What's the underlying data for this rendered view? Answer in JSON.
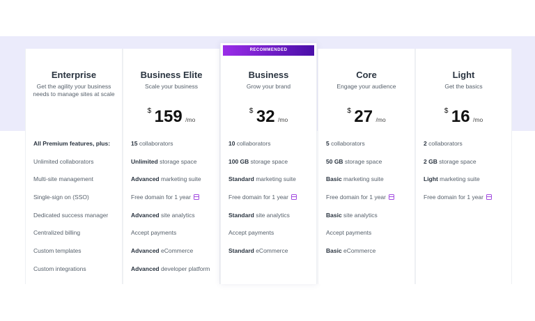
{
  "recommended_label": "RECOMMENDED",
  "plans": [
    {
      "name": "Enterprise",
      "subtitle": "Get the agility your business needs to manage sites at scale",
      "features": [
        {
          "bold": "All Premium features, plus:",
          "text": ""
        },
        {
          "bold": "",
          "text": "Unlimited collaborators"
        },
        {
          "bold": "",
          "text": "Multi-site management"
        },
        {
          "bold": "",
          "text": "Single-sign on (SSO)"
        },
        {
          "bold": "",
          "text": "Dedicated success manager"
        },
        {
          "bold": "",
          "text": "Centralized billing"
        },
        {
          "bold": "",
          "text": "Custom templates"
        },
        {
          "bold": "",
          "text": "Custom integrations"
        }
      ]
    },
    {
      "name": "Business Elite",
      "subtitle": "Scale your business",
      "currency": "$",
      "price": "159",
      "period": "/mo",
      "features": [
        {
          "bold": "15",
          "text": " collaborators"
        },
        {
          "bold": "Unlimited",
          "text": " storage space"
        },
        {
          "bold": "Advanced",
          "text": " marketing suite"
        },
        {
          "bold": "",
          "text": "Free domain for 1 year",
          "gift": true
        },
        {
          "bold": "Advanced",
          "text": " site analytics"
        },
        {
          "bold": "",
          "text": "Accept payments"
        },
        {
          "bold": "Advanced",
          "text": " eCommerce"
        },
        {
          "bold": "Advanced",
          "text": " developer platform"
        }
      ]
    },
    {
      "name": "Business",
      "subtitle": "Grow your brand",
      "currency": "$",
      "price": "32",
      "period": "/mo",
      "recommended": true,
      "features": [
        {
          "bold": "10",
          "text": " collaborators"
        },
        {
          "bold": "100 GB",
          "text": " storage space"
        },
        {
          "bold": "Standard",
          "text": " marketing suite"
        },
        {
          "bold": "",
          "text": "Free domain for 1 year",
          "gift": true
        },
        {
          "bold": "Standard",
          "text": " site analytics"
        },
        {
          "bold": "",
          "text": "Accept payments"
        },
        {
          "bold": "Standard",
          "text": " eCommerce"
        }
      ]
    },
    {
      "name": "Core",
      "subtitle": "Engage your audience",
      "currency": "$",
      "price": "27",
      "period": "/mo",
      "features": [
        {
          "bold": "5",
          "text": " collaborators"
        },
        {
          "bold": "50 GB",
          "text": " storage space"
        },
        {
          "bold": "Basic",
          "text": " marketing suite"
        },
        {
          "bold": "",
          "text": "Free domain for 1 year",
          "gift": true
        },
        {
          "bold": "Basic",
          "text": " site analytics"
        },
        {
          "bold": "",
          "text": "Accept payments"
        },
        {
          "bold": "Basic",
          "text": " eCommerce"
        }
      ]
    },
    {
      "name": "Light",
      "subtitle": "Get the basics",
      "currency": "$",
      "price": "16",
      "period": "/mo",
      "features": [
        {
          "bold": "2",
          "text": " collaborators"
        },
        {
          "bold": "2 GB",
          "text": " storage space"
        },
        {
          "bold": "Light",
          "text": " marketing suite"
        },
        {
          "bold": "",
          "text": "Free domain for 1 year",
          "gift": true
        }
      ]
    }
  ]
}
